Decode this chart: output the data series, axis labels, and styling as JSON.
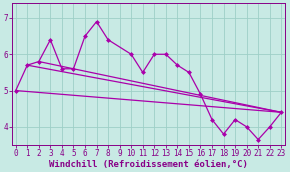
{
  "background_color": "#c8eae4",
  "line_color": "#aa00aa",
  "marker": "D",
  "markersize": 2.5,
  "linewidth": 0.9,
  "series_main": {
    "x": [
      0,
      1,
      2,
      3,
      4,
      5,
      6,
      7,
      8,
      10,
      11,
      12,
      13,
      14,
      15,
      16,
      17,
      18,
      19,
      20,
      21,
      22,
      23
    ],
    "y": [
      5.0,
      5.7,
      5.8,
      6.4,
      5.6,
      5.6,
      6.5,
      6.9,
      6.4,
      6.0,
      5.5,
      6.0,
      6.0,
      5.7,
      5.5,
      4.9,
      4.2,
      3.8,
      4.2,
      4.0,
      3.65,
      4.0,
      4.4
    ]
  },
  "straight_lines": [
    {
      "x": [
        0,
        23
      ],
      "y": [
        5.0,
        4.4
      ]
    },
    {
      "x": [
        1,
        23
      ],
      "y": [
        5.7,
        4.4
      ]
    },
    {
      "x": [
        2,
        23
      ],
      "y": [
        5.8,
        4.4
      ]
    }
  ],
  "xlabel": "Windchill (Refroidissement éolien,°C)",
  "xlabel_fontsize": 6.5,
  "yticks": [
    4,
    5,
    6,
    7
  ],
  "xticks": [
    0,
    1,
    2,
    3,
    4,
    5,
    6,
    7,
    8,
    9,
    10,
    11,
    12,
    13,
    14,
    15,
    16,
    17,
    18,
    19,
    20,
    21,
    22,
    23
  ],
  "xlim": [
    -0.3,
    23.3
  ],
  "ylim": [
    3.5,
    7.4
  ],
  "grid_color": "#9dcfc7",
  "tick_color": "#880088",
  "tick_fontsize": 5.5,
  "axis_color": "#880088"
}
